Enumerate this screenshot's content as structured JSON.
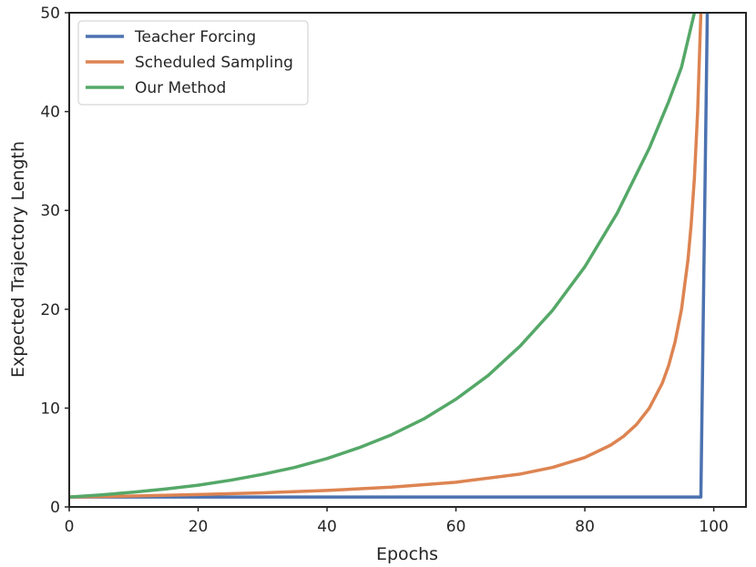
{
  "chart_data": {
    "type": "line",
    "xlabel": "Epochs",
    "ylabel": "Expected Trajectory Length",
    "xlim": [
      0,
      105
    ],
    "ylim": [
      0,
      50
    ],
    "xticks": [
      0,
      20,
      40,
      60,
      80,
      100
    ],
    "yticks": [
      0,
      10,
      20,
      30,
      40,
      50
    ],
    "grid": false,
    "legend_position": "top-left",
    "series": [
      {
        "name": "Teacher Forcing",
        "color": "#4c72b0",
        "x": [
          0,
          10,
          20,
          30,
          40,
          50,
          60,
          70,
          80,
          90,
          98,
          99
        ],
        "y": [
          1,
          1,
          1,
          1,
          1,
          1,
          1,
          1,
          1,
          1,
          1,
          50
        ]
      },
      {
        "name": "Scheduled Sampling",
        "color": "#dd8452",
        "x": [
          0,
          10,
          20,
          30,
          40,
          50,
          60,
          70,
          75,
          80,
          84,
          86,
          88,
          90,
          92,
          93,
          94,
          95,
          96,
          96.5,
          97,
          97.5,
          98
        ],
        "y": [
          1.0,
          1.1,
          1.25,
          1.43,
          1.67,
          2.0,
          2.5,
          3.33,
          4.0,
          5.0,
          6.25,
          7.14,
          8.33,
          10.0,
          12.5,
          14.3,
          16.7,
          20.0,
          25.0,
          28.6,
          33.3,
          40.0,
          50.0
        ]
      },
      {
        "name": "Our Method",
        "color": "#55a868",
        "x": [
          0,
          5,
          10,
          15,
          20,
          25,
          30,
          35,
          40,
          45,
          50,
          55,
          60,
          65,
          70,
          75,
          80,
          85,
          90,
          93,
          95,
          97
        ],
        "y": [
          1.0,
          1.22,
          1.5,
          1.82,
          2.2,
          2.7,
          3.3,
          4.0,
          4.9,
          6.0,
          7.3,
          8.9,
          10.9,
          13.3,
          16.3,
          19.9,
          24.3,
          29.7,
          36.3,
          41.0,
          44.5,
          50.0
        ]
      }
    ]
  }
}
